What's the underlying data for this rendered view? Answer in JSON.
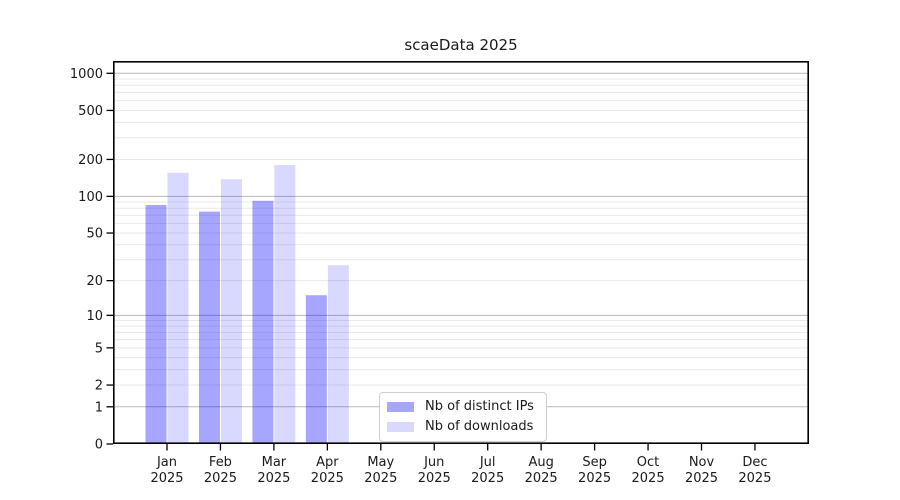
{
  "title": "scaeData 2025",
  "chart_data": {
    "type": "bar",
    "title": "scaeData 2025",
    "xlabel": "",
    "ylabel": "",
    "year": "2025",
    "categories": [
      "Jan",
      "Feb",
      "Mar",
      "Apr",
      "May",
      "Jun",
      "Jul",
      "Aug",
      "Sep",
      "Oct",
      "Nov",
      "Dec"
    ],
    "x_ticklabels": [
      [
        "Jan",
        "2025"
      ],
      [
        "Feb",
        "2025"
      ],
      [
        "Mar",
        "2025"
      ],
      [
        "Apr",
        "2025"
      ],
      [
        "May",
        "2025"
      ],
      [
        "Jun",
        "2025"
      ],
      [
        "Jul",
        "2025"
      ],
      [
        "Aug",
        "2025"
      ],
      [
        "Sep",
        "2025"
      ],
      [
        "Oct",
        "2025"
      ],
      [
        "Nov",
        "2025"
      ],
      [
        "Dec",
        "2025"
      ]
    ],
    "series": [
      {
        "name": "Nb of distinct IPs",
        "values": [
          85,
          75,
          92,
          15,
          0,
          0,
          0,
          0,
          0,
          0,
          0,
          0
        ],
        "color": "#0000ff",
        "opacity": 0.35
      },
      {
        "name": "Nb of downloads",
        "values": [
          156,
          138,
          180,
          27,
          0,
          0,
          0,
          0,
          0,
          0,
          0,
          0
        ],
        "color": "#0000ff",
        "opacity": 0.15
      }
    ],
    "y_scale": "log1p",
    "y_ticks": [
      1000,
      500,
      200,
      100,
      50,
      20,
      10,
      5,
      2,
      1,
      0
    ],
    "ylim": [
      0,
      1258
    ],
    "grid": {
      "major_color": "#b9b9b9",
      "minor_color": "#e9e9e9",
      "visible": true
    },
    "legend_position": "lower-center",
    "axis_color": "#000000",
    "text_color": "#1a1a1a"
  }
}
